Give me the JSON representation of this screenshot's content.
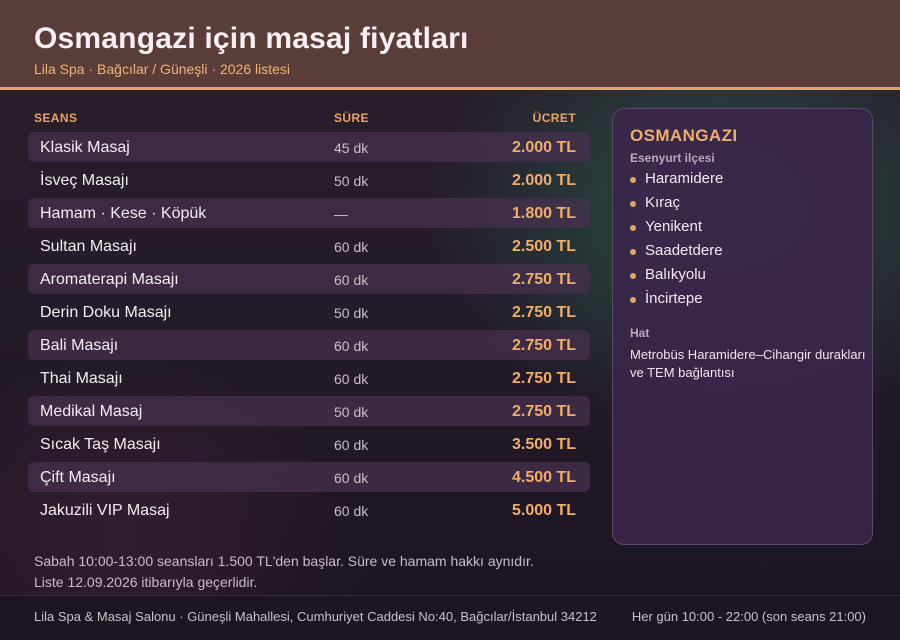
{
  "header": {
    "title": "Osmangazi için masaj fiyatları",
    "subtitle": "Lila Spa · Bağcılar / Güneşli · 2026 listesi"
  },
  "table": {
    "columns": {
      "name": "SEANS",
      "duration": "SÜRE",
      "price": "ÜCRET"
    },
    "rows": [
      {
        "name": "Klasik Masaj",
        "duration": "45 dk",
        "price": "2.000 TL"
      },
      {
        "name": "İsveç Masajı",
        "duration": "50 dk",
        "price": "2.000 TL"
      },
      {
        "name": "Hamam · Kese · Köpük",
        "duration": "—",
        "price": "1.800 TL"
      },
      {
        "name": "Sultan Masajı",
        "duration": "60 dk",
        "price": "2.500 TL"
      },
      {
        "name": "Aromaterapi Masajı",
        "duration": "60 dk",
        "price": "2.750 TL"
      },
      {
        "name": "Derin Doku Masajı",
        "duration": "50 dk",
        "price": "2.750 TL"
      },
      {
        "name": "Bali Masajı",
        "duration": "60 dk",
        "price": "2.750 TL"
      },
      {
        "name": "Thai Masajı",
        "duration": "60 dk",
        "price": "2.750 TL"
      },
      {
        "name": "Medikal Masaj",
        "duration": "50 dk",
        "price": "2.750 TL"
      },
      {
        "name": "Sıcak Taş Masajı",
        "duration": "60 dk",
        "price": "3.500 TL"
      },
      {
        "name": "Çift Masajı",
        "duration": "60 dk",
        "price": "4.500 TL"
      },
      {
        "name": "Jakuzili VIP Masaj",
        "duration": "60 dk",
        "price": "5.000 TL"
      }
    ]
  },
  "notes": {
    "line1": "Sabah 10:00-13:00 seansları 1.500 TL'den başlar. Süre ve hamam hakkı aynıdır.",
    "line2": "Liste 12.09.2026 itibarıyla geçerlidir."
  },
  "card": {
    "title": "OSMANGAZI",
    "district": "Esenyurt ilçesi",
    "neighborhoods": [
      "Haramidere",
      "Kıraç",
      "Yenikent",
      "Saadetdere",
      "Balıkyolu",
      "İncirtepe"
    ],
    "transit_label": "Hat",
    "transit_text": "Metrobüs Haramidere–Cihangir durakları ve TEM bağlantısı"
  },
  "footer": {
    "address": "Lila Spa & Masaj Salonu · Güneşli Mahallesi, Cumhuriyet Caddesi No:40, Bağcılar/İstanbul 34212",
    "hours": "Her gün 10:00 - 22:00 (son seans 21:00)"
  },
  "colors": {
    "accent": "#f0ad6c",
    "header_bg": "#5a3d38",
    "card_bg": "#3a264a"
  }
}
